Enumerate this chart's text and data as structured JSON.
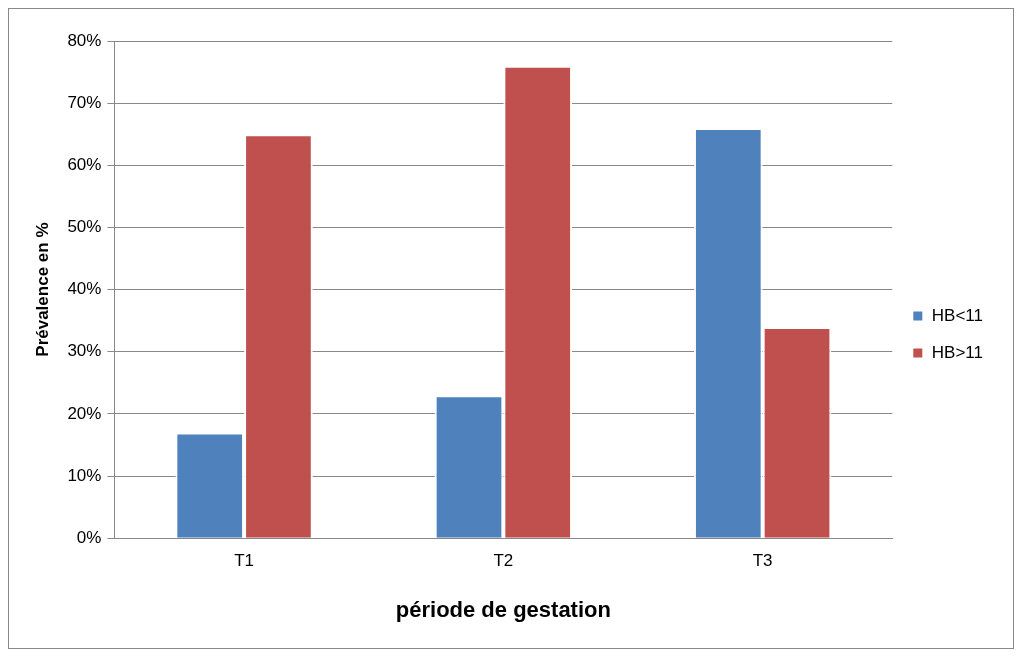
{
  "chart_data": {
    "type": "bar",
    "xlabel": "période de gestation",
    "ylabel": "Prévalence en %",
    "categories": [
      "T1",
      "T2",
      "T3"
    ],
    "series": [
      {
        "name": "HB<11",
        "color": "#4f81bd",
        "values": [
          17,
          23,
          66
        ]
      },
      {
        "name": "HB>11",
        "color": "#c0504d",
        "values": [
          65,
          76,
          34
        ]
      }
    ],
    "ylim": [
      0,
      80
    ],
    "yticks": [
      {
        "value": 0,
        "label": "0%"
      },
      {
        "value": 10,
        "label": "10%"
      },
      {
        "value": 20,
        "label": "20%"
      },
      {
        "value": 30,
        "label": "30%"
      },
      {
        "value": 40,
        "label": "40%"
      },
      {
        "value": 50,
        "label": "50%"
      },
      {
        "value": 60,
        "label": "60%"
      },
      {
        "value": 70,
        "label": "70%"
      },
      {
        "value": 80,
        "label": "80%"
      }
    ],
    "grid": "y",
    "legend": "right"
  }
}
